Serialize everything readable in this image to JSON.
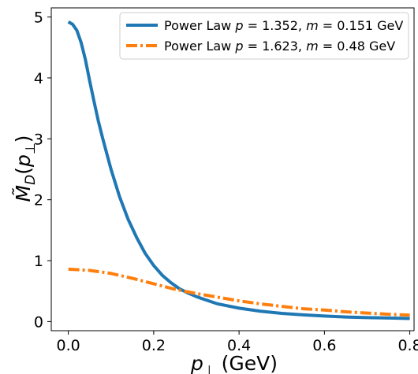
{
  "chart_data": {
    "type": "line",
    "title": "",
    "xlabel": "p_⊥ (GeV)",
    "ylabel": "M̃_D(p_⊥)",
    "xlim": [
      -0.04,
      0.81
    ],
    "ylim": [
      -0.15,
      5.15
    ],
    "xticks": [
      0.0,
      0.2,
      0.4,
      0.6,
      0.8
    ],
    "xtick_labels": [
      "0.0",
      "0.2",
      "0.4",
      "0.6",
      "0.8"
    ],
    "yticks": [
      0,
      1,
      2,
      3,
      4,
      5
    ],
    "ytick_labels": [
      "0",
      "1",
      "2",
      "3",
      "4",
      "5"
    ],
    "grid": false,
    "legend_position": "top-right",
    "series": [
      {
        "name": "Power Law p = 1.352, m = 0.151 GeV",
        "color": "#1f77b4",
        "line_style": "solid",
        "x": [
          0.0,
          0.01,
          0.02,
          0.03,
          0.04,
          0.05,
          0.06,
          0.07,
          0.08,
          0.09,
          0.1,
          0.12,
          0.14,
          0.16,
          0.18,
          0.2,
          0.22,
          0.24,
          0.26,
          0.28,
          0.3,
          0.32,
          0.35,
          0.4,
          0.45,
          0.5,
          0.55,
          0.6,
          0.65,
          0.7,
          0.75,
          0.8
        ],
        "y": [
          4.92,
          4.88,
          4.78,
          4.58,
          4.3,
          3.95,
          3.62,
          3.3,
          3.02,
          2.76,
          2.5,
          2.05,
          1.68,
          1.38,
          1.12,
          0.92,
          0.76,
          0.64,
          0.54,
          0.47,
          0.41,
          0.36,
          0.29,
          0.22,
          0.17,
          0.135,
          0.11,
          0.09,
          0.075,
          0.065,
          0.058,
          0.05
        ]
      },
      {
        "name": "Power Law p = 1.623, m = 0.48 GeV",
        "color": "#ff7f0e",
        "line_style": "dashdot",
        "x": [
          0.0,
          0.05,
          0.1,
          0.15,
          0.2,
          0.25,
          0.3,
          0.35,
          0.4,
          0.45,
          0.5,
          0.55,
          0.6,
          0.65,
          0.7,
          0.75,
          0.8
        ],
        "y": [
          0.86,
          0.84,
          0.79,
          0.71,
          0.62,
          0.53,
          0.46,
          0.4,
          0.34,
          0.29,
          0.25,
          0.21,
          0.19,
          0.16,
          0.14,
          0.12,
          0.105
        ]
      }
    ]
  }
}
